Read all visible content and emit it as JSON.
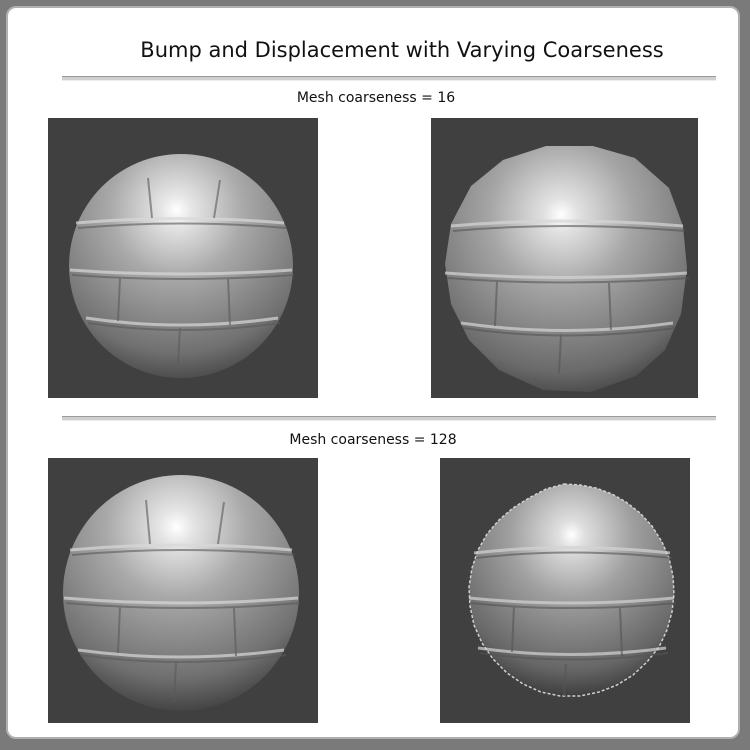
{
  "title": "Bump and Displacement with Varying Coarseness",
  "sections": [
    {
      "label": "Mesh coarseness = 16"
    },
    {
      "label": "Mesh coarseness = 128"
    }
  ],
  "colors": {
    "page_bg": "#7a7a7a",
    "panel_bg": "#ffffff",
    "viewport_bg": "#404040"
  },
  "images": [
    {
      "name": "sphere-bump-16",
      "shape": "smooth sphere"
    },
    {
      "name": "sphere-displacement-16",
      "shape": "faceted sphere"
    },
    {
      "name": "sphere-bump-128",
      "shape": "smooth sphere"
    },
    {
      "name": "sphere-displacement-128",
      "shape": "rough sphere"
    }
  ]
}
